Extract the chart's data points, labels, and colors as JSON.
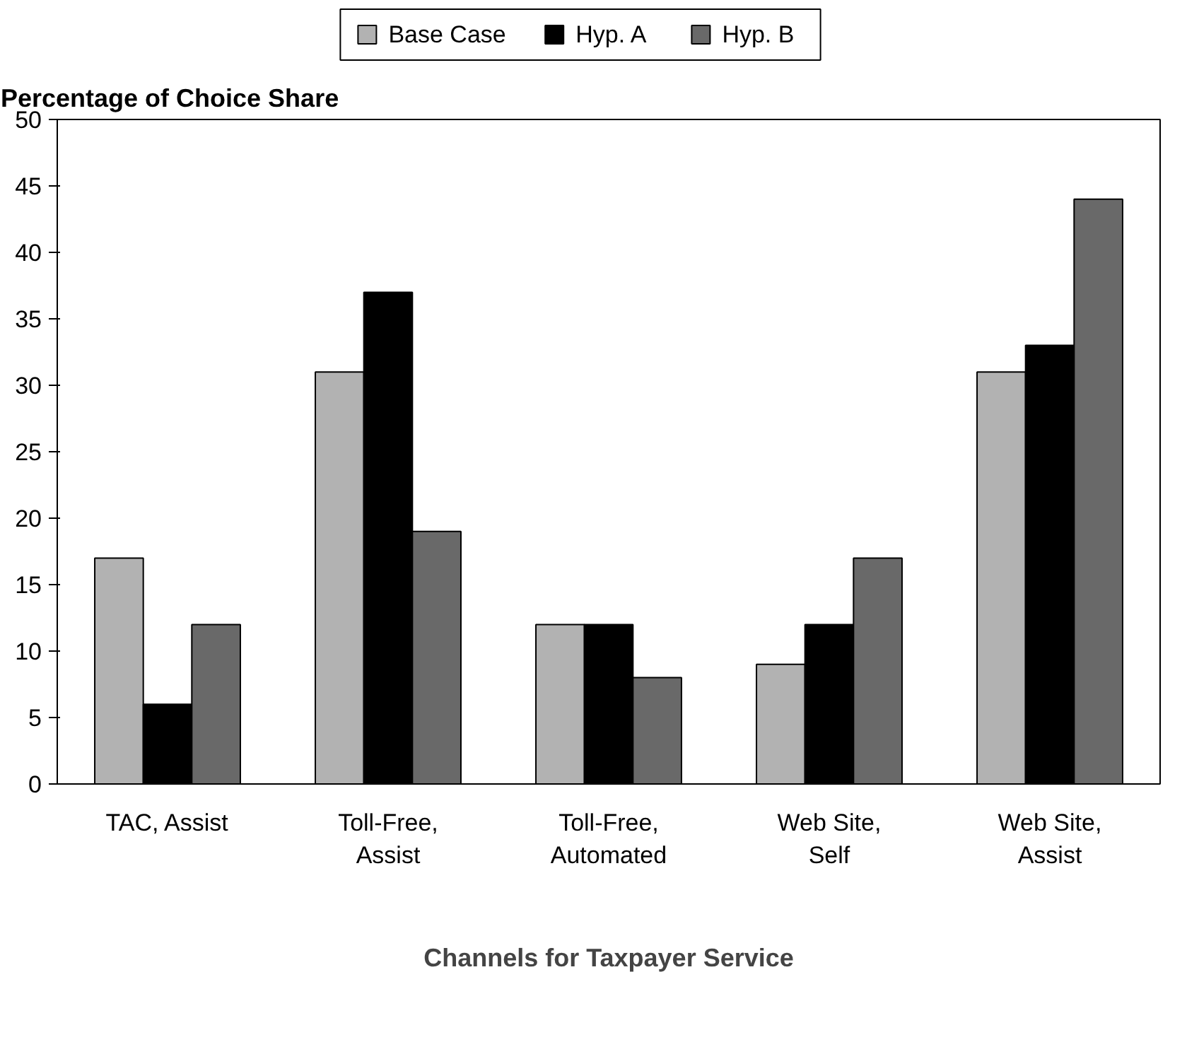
{
  "chart_data": {
    "type": "bar",
    "xlabel": "Channels for Taxpayer Service",
    "ylabel": "Percentage of Choice Share",
    "categories": [
      "TAC, Assist",
      "Toll-Free, Assist",
      "Toll-Free, Automated",
      "Web Site, Self",
      "Web Site, Assist"
    ],
    "series": [
      {
        "name": "Base Case",
        "color": "#b2b2b2",
        "values": [
          17,
          31,
          12,
          9,
          31
        ]
      },
      {
        "name": "Hyp. A",
        "color": "#000000",
        "values": [
          6,
          37,
          12,
          12,
          33
        ]
      },
      {
        "name": "Hyp. B",
        "color": "#696969",
        "values": [
          12,
          19,
          8,
          17,
          44
        ]
      }
    ],
    "ylim": [
      0,
      50
    ],
    "yticks": [
      0,
      5,
      10,
      15,
      20,
      25,
      30,
      35,
      40,
      45,
      50
    ],
    "grid": false,
    "legend": "top"
  }
}
